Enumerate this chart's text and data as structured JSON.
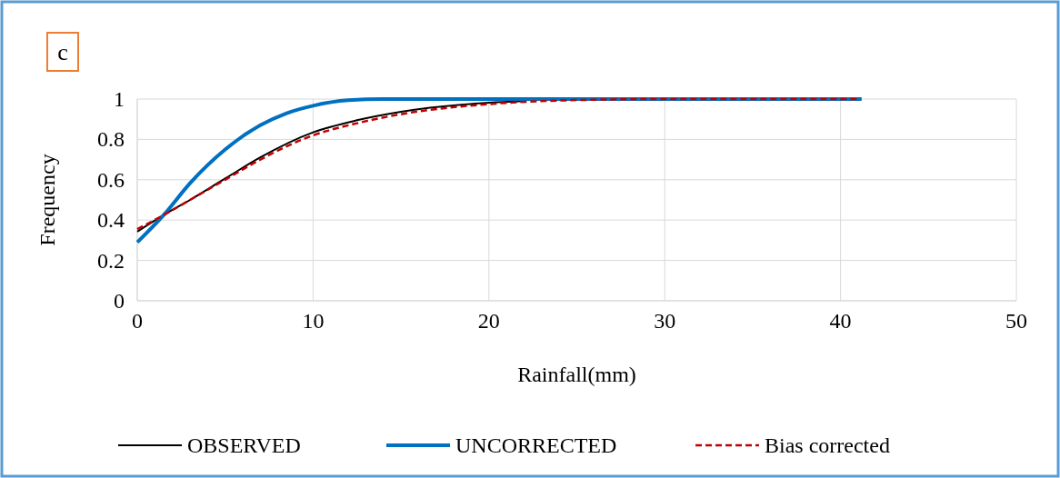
{
  "chart_data": {
    "type": "line",
    "xlabel": "Rainfall(mm)",
    "ylabel": "Frequency",
    "annotations": [
      "c"
    ],
    "xlim": [
      0,
      50
    ],
    "xticks": [
      0,
      10,
      20,
      30,
      40,
      50
    ],
    "ylim": [
      0,
      1
    ],
    "yticks": [
      0,
      0.2,
      0.4,
      0.6,
      0.8,
      1
    ],
    "grid": true,
    "legend": "bottom",
    "series": [
      {
        "name": "OBSERVED",
        "color": "#000000",
        "line_style": "solid",
        "x": [
          0,
          1.5,
          3,
          5,
          7,
          10,
          12.5,
          15,
          20,
          22
        ],
        "values": [
          0.343,
          0.425,
          0.5,
          0.606,
          0.711,
          0.835,
          0.895,
          0.937,
          0.982,
          0.99
        ]
      },
      {
        "name": "UNCORRECTED",
        "color": "#0070c0",
        "line_style": "solid",
        "x": [
          0,
          1.5,
          3,
          5,
          7,
          8.5,
          10,
          12,
          14,
          20,
          30,
          41.2
        ],
        "values": [
          0.29,
          0.425,
          0.583,
          0.75,
          0.87,
          0.93,
          0.967,
          0.994,
          1,
          1,
          1,
          1
        ]
      },
      {
        "name": "Bias corrected",
        "color": "#c00000",
        "line_style": "dashed",
        "x": [
          0,
          1.5,
          3,
          5,
          7,
          10,
          12.5,
          15,
          20,
          25,
          30,
          41
        ],
        "values": [
          0.355,
          0.425,
          0.5,
          0.6,
          0.7,
          0.82,
          0.88,
          0.925,
          0.975,
          0.995,
          1,
          1
        ]
      }
    ]
  }
}
